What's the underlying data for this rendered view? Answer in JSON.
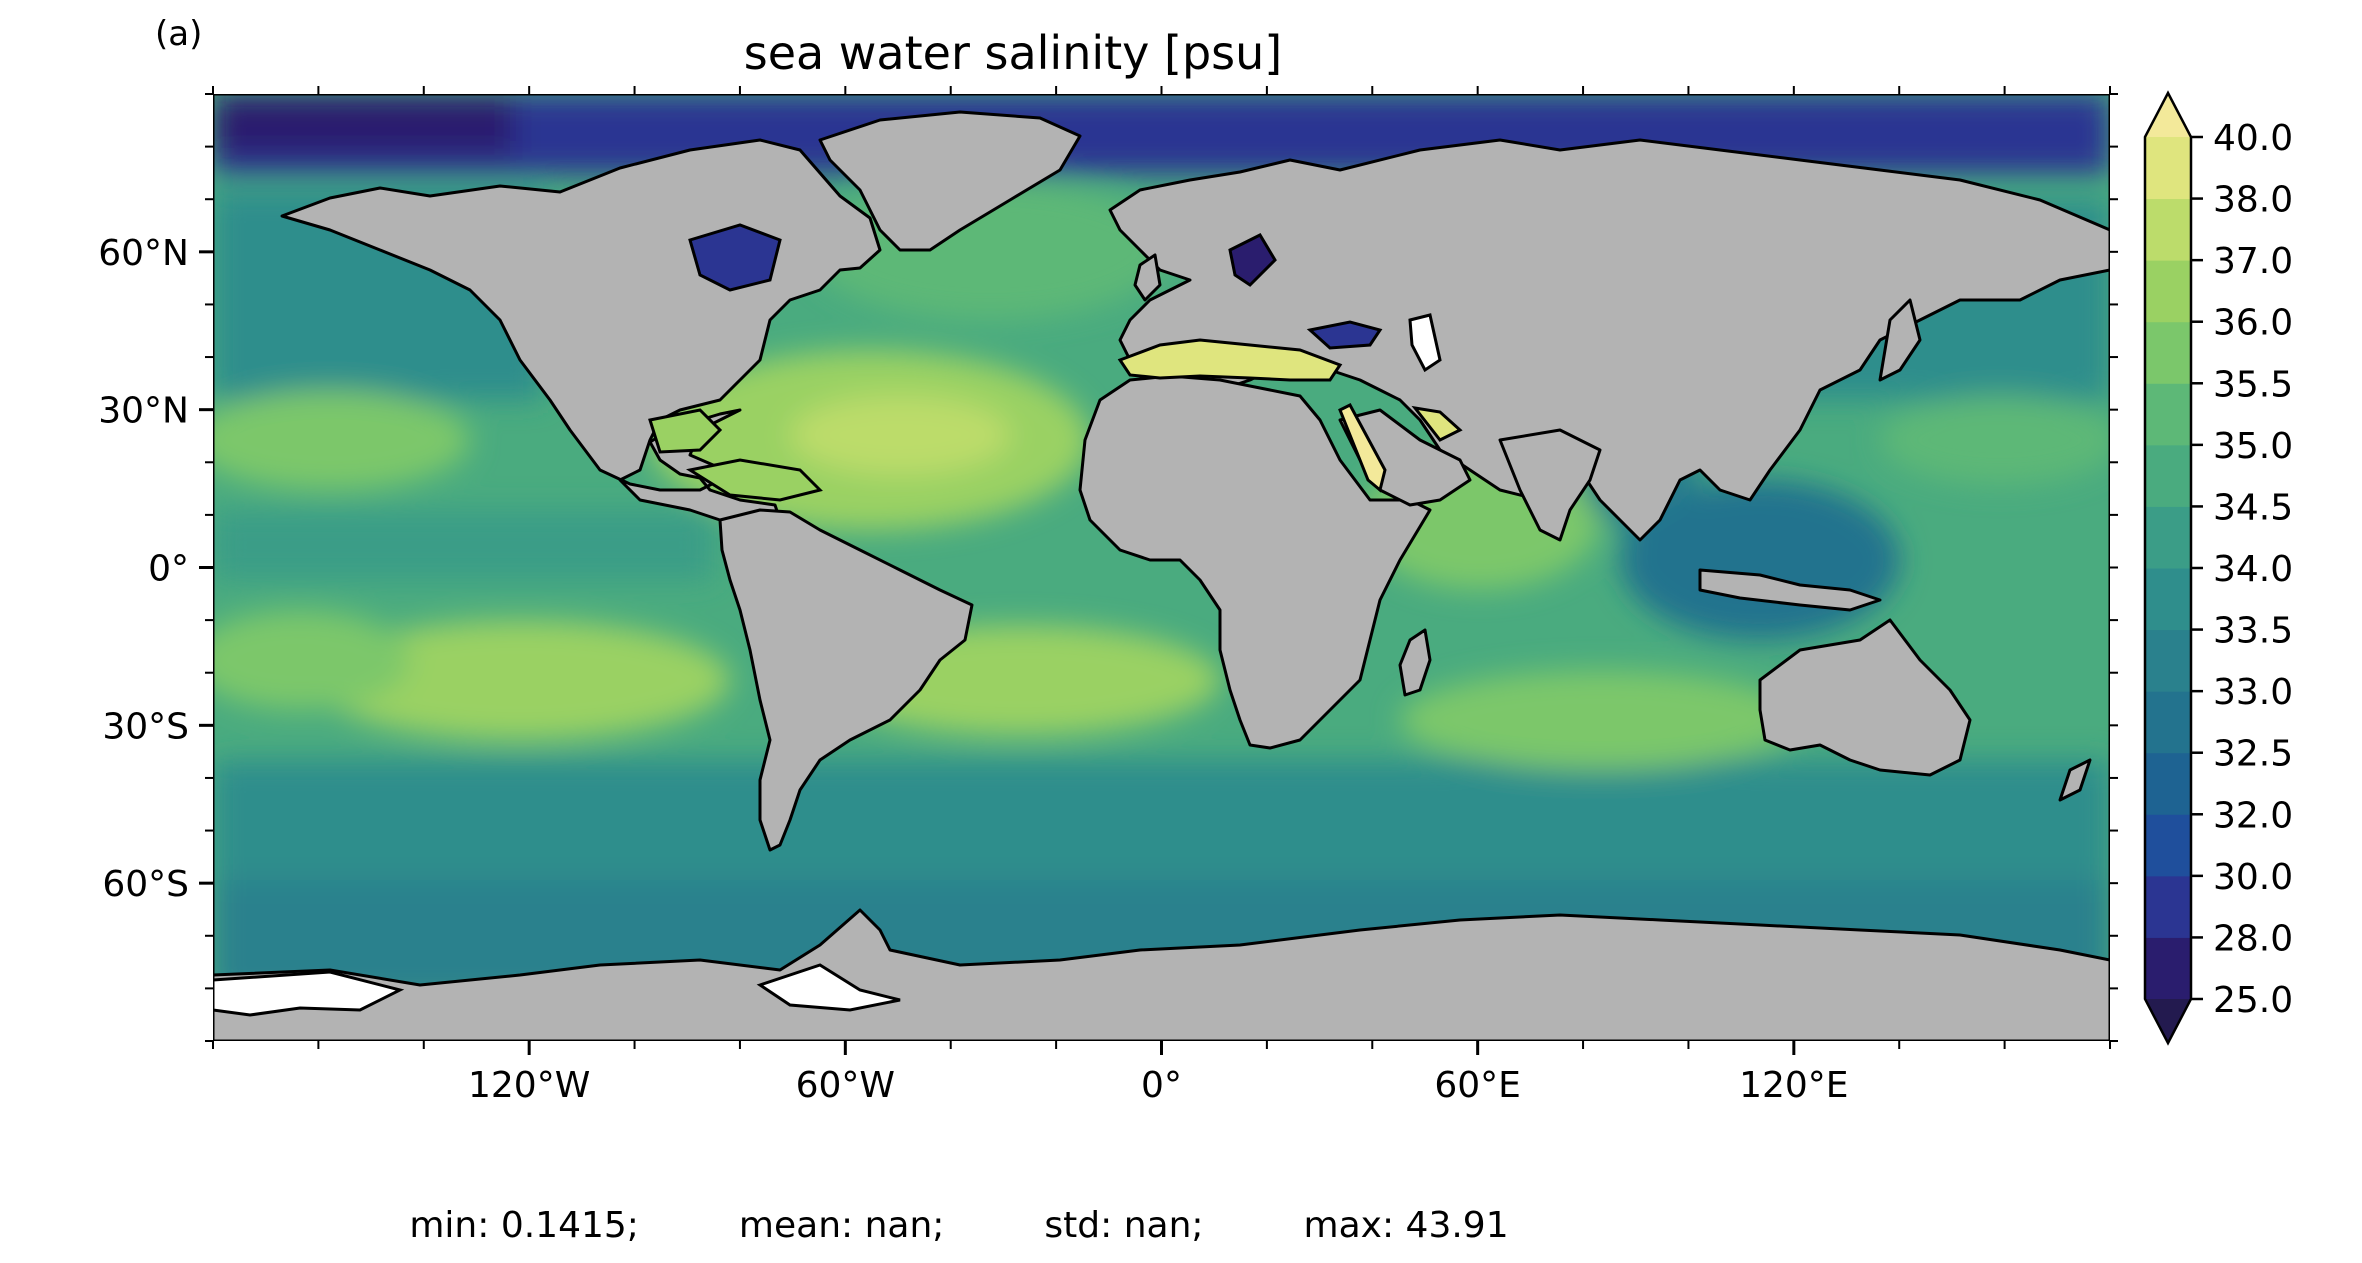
{
  "figure": {
    "panel_label": "(a)",
    "title": "sea water salinity [psu]",
    "colors": {
      "land": "#b3b3b3",
      "coastline": "#000000",
      "missing": "#ffffff"
    },
    "stats": {
      "min": "min: 0.1415;",
      "mean": "mean: nan;",
      "std": "std: nan;",
      "max": "max: 43.91"
    }
  },
  "chart_data": {
    "type": "heatmap",
    "projection": "PlateCarree",
    "variable": "sea water salinity",
    "units": "psu",
    "xlim": [
      -180,
      180
    ],
    "ylim": [
      -90,
      90
    ],
    "x_ticks": [
      {
        "value": -120,
        "label": "120°W"
      },
      {
        "value": -60,
        "label": "60°W"
      },
      {
        "value": 0,
        "label": "0°"
      },
      {
        "value": 60,
        "label": "60°E"
      },
      {
        "value": 120,
        "label": "120°E"
      }
    ],
    "y_ticks": [
      {
        "value": 60,
        "label": "60°N"
      },
      {
        "value": 30,
        "label": "30°N"
      },
      {
        "value": 0,
        "label": "0°"
      },
      {
        "value": -30,
        "label": "30°S"
      },
      {
        "value": -60,
        "label": "60°S"
      }
    ],
    "colorbar": {
      "extend": "both",
      "levels": [
        "25.0",
        "28.0",
        "30.0",
        "32.0",
        "32.5",
        "33.0",
        "33.5",
        "34.0",
        "34.5",
        "35.0",
        "35.5",
        "36.0",
        "37.0",
        "38.0",
        "40.0"
      ],
      "colors": [
        "#2a1d6e",
        "#2b3592",
        "#1f4f9c",
        "#1e6392",
        "#23738e",
        "#2a818d",
        "#2f8e8c",
        "#3b9d87",
        "#4aab7f",
        "#5db877",
        "#7bc76b",
        "#9ad163",
        "#bcdc6b",
        "#dfe57e"
      ],
      "under_color": "#231a4f",
      "over_color": "#f3e99a"
    },
    "salinity_regions": [
      {
        "name": "arctic-ocean",
        "value": 29.0
      },
      {
        "name": "north-pacific",
        "value": 33.0
      },
      {
        "name": "subtropical-north-pacific",
        "value": 35.0
      },
      {
        "name": "equatorial-pacific",
        "value": 34.5
      },
      {
        "name": "south-pacific-gyre",
        "value": 36.0
      },
      {
        "name": "subtropical-north-atlantic",
        "value": 37.2
      },
      {
        "name": "south-atlantic-gyre",
        "value": 36.5
      },
      {
        "name": "mediterranean-sea",
        "value": 38.5
      },
      {
        "name": "red-sea",
        "value": 39.5
      },
      {
        "name": "arabian-sea",
        "value": 36.2
      },
      {
        "name": "bay-of-bengal",
        "value": 32.5
      },
      {
        "name": "indonesian-seas",
        "value": 33.5
      },
      {
        "name": "south-indian-ocean",
        "value": 35.5
      },
      {
        "name": "southern-ocean",
        "value": 34.0
      },
      {
        "name": "black-sea",
        "value": 27.0
      },
      {
        "name": "hudson-bay",
        "value": 28.5
      },
      {
        "name": "baltic-sea",
        "value": 26.0
      }
    ]
  }
}
